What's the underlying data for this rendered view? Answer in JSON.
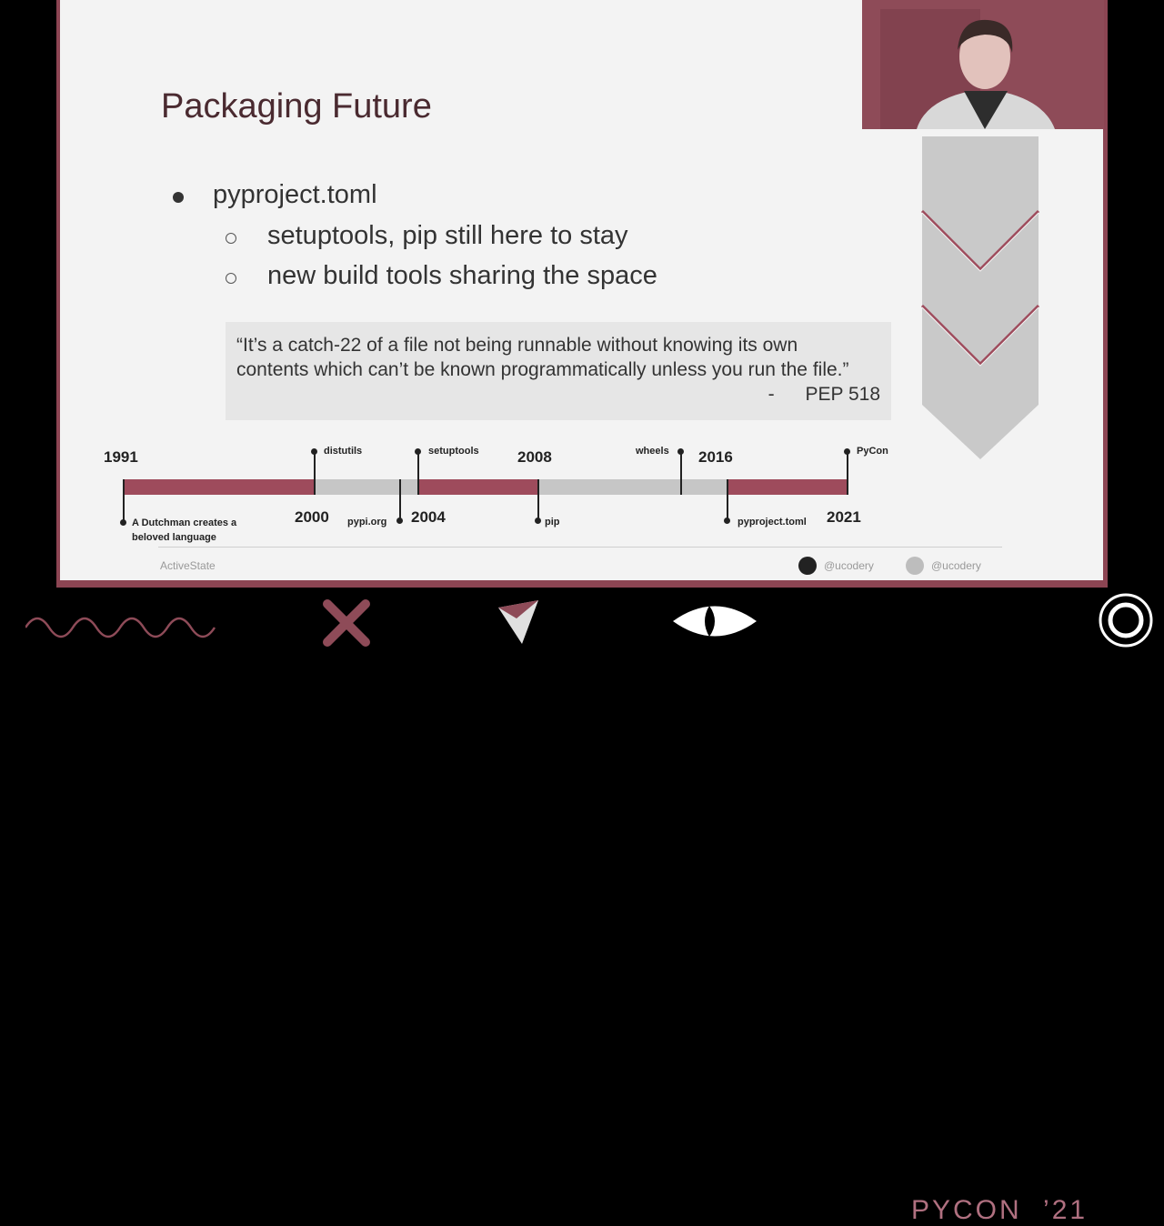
{
  "slide": {
    "title": "Packaging Future",
    "bullet": "pyproject.toml",
    "sub_bullets": [
      "setuptools, pip still here to stay",
      "new build tools sharing the space"
    ],
    "quote_lines": [
      "“It’s a catch-22 of a file not being runnable without knowing its own",
      "contents which can’t be known programmatically unless you run the file.”"
    ],
    "quote_dash": "-",
    "quote_attribution": "PEP 518",
    "footer_brand": "ActiveState",
    "github_handle": "@ucodery",
    "twitter_handle": "@ucodery"
  },
  "timeline": {
    "years": [
      "1991",
      "2000",
      "2004",
      "2008",
      "2016",
      "2021"
    ],
    "events": [
      {
        "label": "A Dutchman creates a",
        "label2": "beloved language"
      },
      {
        "label": "distutils"
      },
      {
        "label": "pypi.org"
      },
      {
        "label": "setuptools"
      },
      {
        "label": "pip"
      },
      {
        "label": "wheels"
      },
      {
        "label": "pyproject.toml"
      },
      {
        "label": "PyCon"
      }
    ]
  },
  "branding": {
    "event": "PYCON",
    "year": "’21"
  },
  "colors": {
    "accent": "#9e4b5c",
    "timeline_grey": "#c6c6c6",
    "slide_bg": "#f3f3f3"
  }
}
